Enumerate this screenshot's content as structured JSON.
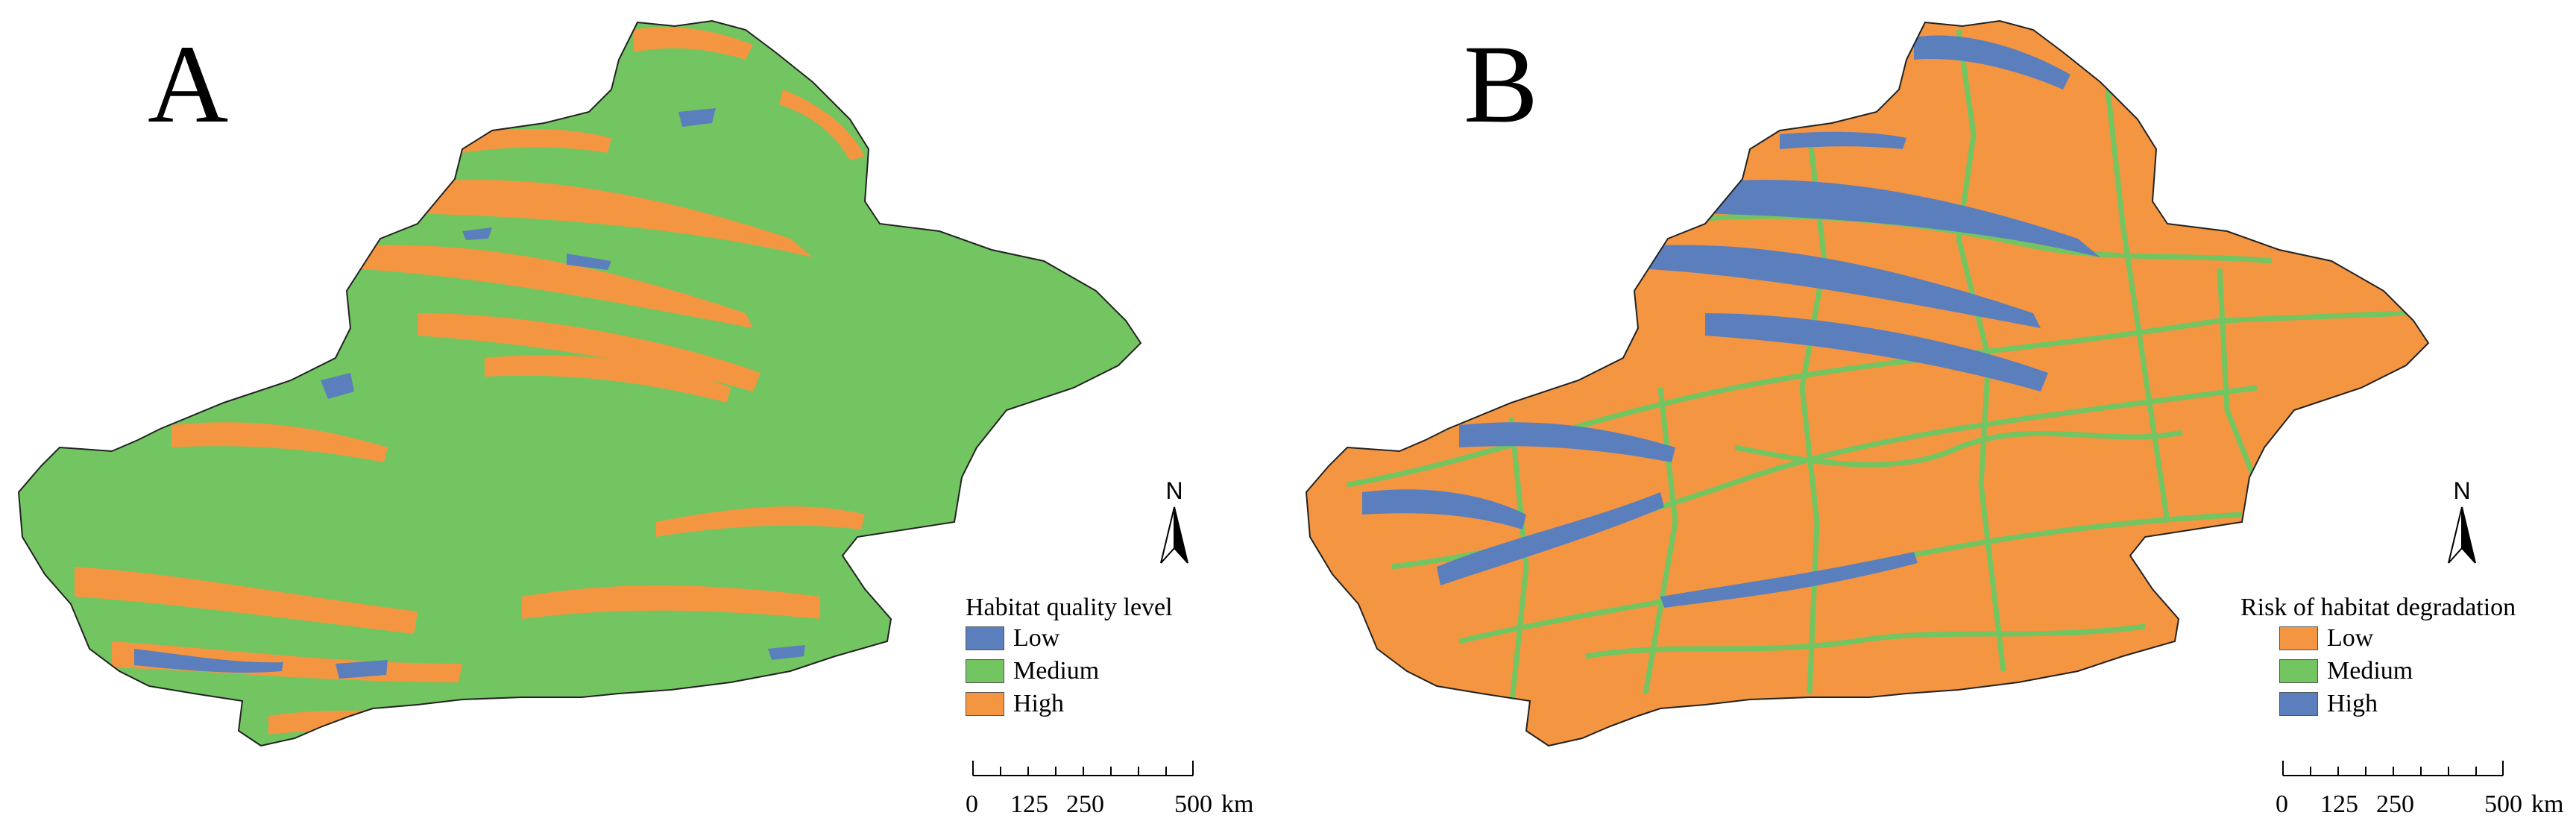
{
  "panels": [
    {
      "label": "A",
      "legend_title": "Habitat quality level",
      "legend": [
        {
          "label": "Low",
          "color": "#5b7fbd"
        },
        {
          "label": "Medium",
          "color": "#72c561"
        },
        {
          "label": "High",
          "color": "#f49641"
        }
      ],
      "dominant_class": "Medium"
    },
    {
      "label": "B",
      "legend_title": "Risk of habitat degradation",
      "legend": [
        {
          "label": "Low",
          "color": "#f49641"
        },
        {
          "label": "Medium",
          "color": "#72c561"
        },
        {
          "label": "High",
          "color": "#5b7fbd"
        }
      ],
      "dominant_class": "Low"
    }
  ],
  "north_arrow": {
    "letter": "N",
    "icon": "north-arrow-icon"
  },
  "scale_bar": {
    "ticks": [
      "0",
      "125",
      "250",
      "500"
    ],
    "unit": "km"
  }
}
